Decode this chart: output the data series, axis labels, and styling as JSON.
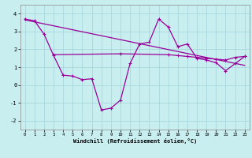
{
  "xlabel": "Windchill (Refroidissement éolien,°C)",
  "bg_color": "#c8eef0",
  "line_color": "#990099",
  "grid_color": "#aad8dc",
  "xlim": [
    -0.5,
    23.5
  ],
  "ylim": [
    -2.5,
    4.5
  ],
  "yticks": [
    -2,
    -1,
    0,
    1,
    2,
    3,
    4
  ],
  "xticks": [
    0,
    1,
    2,
    3,
    4,
    5,
    6,
    7,
    8,
    9,
    10,
    11,
    12,
    13,
    14,
    15,
    16,
    17,
    18,
    19,
    20,
    21,
    22,
    23
  ],
  "series1_x": [
    0,
    1,
    2,
    3,
    4,
    5,
    6,
    7,
    8,
    9,
    10,
    11,
    12,
    13,
    14,
    15,
    16,
    17,
    18,
    19,
    20,
    21,
    22,
    23
  ],
  "series1_y": [
    3.7,
    3.6,
    2.85,
    1.65,
    0.55,
    0.5,
    0.3,
    0.35,
    -1.4,
    -1.3,
    -0.85,
    1.2,
    2.3,
    2.4,
    3.7,
    3.25,
    2.15,
    2.3,
    1.5,
    1.4,
    1.25,
    0.8,
    1.2,
    1.6
  ],
  "series2_x": [
    0,
    23
  ],
  "series2_y": [
    3.65,
    1.1
  ],
  "series3_x": [
    3,
    10,
    15,
    16,
    17,
    18,
    19,
    20,
    21,
    22,
    23
  ],
  "series3_y": [
    1.7,
    1.75,
    1.7,
    1.65,
    1.6,
    1.55,
    1.5,
    1.45,
    1.4,
    1.55,
    1.6
  ]
}
